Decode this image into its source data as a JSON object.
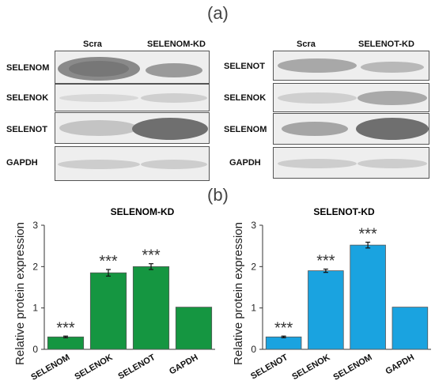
{
  "panel_a_label": "(a)",
  "panel_b_label": "(b)",
  "blots": [
    {
      "columns": [
        "Scra",
        "SELENOM-KD"
      ],
      "rows": [
        "SELENOM",
        "SELENOK",
        "SELENOT",
        "GAPDH"
      ]
    },
    {
      "columns": [
        "Scra",
        "SELENOT-KD"
      ],
      "rows": [
        "SELENOT",
        "SELENOK",
        "SELENOM",
        "GAPDH"
      ]
    }
  ],
  "chart_data": [
    {
      "type": "bar",
      "title": "SELENOM-KD",
      "ylabel": "Relative protein expression",
      "categories": [
        "SELENOM",
        "SELENOK",
        "SELENOT",
        "GAPDH"
      ],
      "values": [
        0.3,
        1.85,
        2.0,
        1.02
      ],
      "errors": [
        0.02,
        0.08,
        0.07,
        0
      ],
      "significance": [
        "***",
        "***",
        "***",
        ""
      ],
      "ylim": [
        0,
        3
      ],
      "yticks": [
        "0",
        "1",
        "2",
        "3"
      ],
      "bar_color": "#159641"
    },
    {
      "type": "bar",
      "title": "SELENOT-KD",
      "ylabel": "Relative protein expression",
      "categories": [
        "SELENOT",
        "SELENOK",
        "SELENOM",
        "GAPDH"
      ],
      "values": [
        0.3,
        1.9,
        2.52,
        1.02
      ],
      "errors": [
        0.02,
        0.04,
        0.07,
        0
      ],
      "significance": [
        "***",
        "***",
        "***",
        ""
      ],
      "ylim": [
        0,
        3
      ],
      "yticks": [
        "0",
        "1",
        "2",
        "3"
      ],
      "bar_color": "#1aa3e0"
    }
  ]
}
